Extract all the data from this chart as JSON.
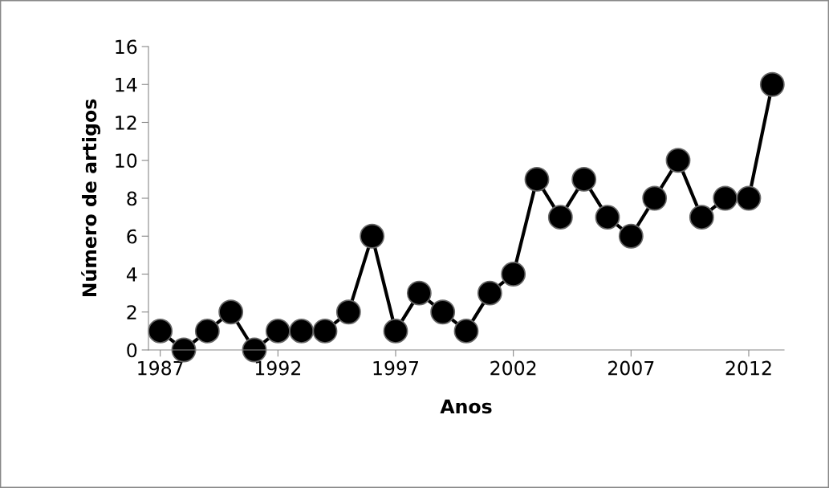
{
  "chart_data": {
    "type": "line",
    "xlabel": "Anos",
    "ylabel": "Número de artigos",
    "x": [
      1987,
      1988,
      1989,
      1990,
      1991,
      1992,
      1993,
      1994,
      1995,
      1996,
      1997,
      1998,
      1999,
      2000,
      2001,
      2002,
      2003,
      2004,
      2005,
      2006,
      2007,
      2008,
      2009,
      2010,
      2011,
      2012,
      2013
    ],
    "series": [
      {
        "color": "#000000",
        "values": [
          1,
          0,
          1,
          2,
          0,
          1,
          1,
          1,
          2,
          6,
          1,
          3,
          2,
          1,
          3,
          4,
          9,
          7,
          9,
          7,
          6,
          8,
          10,
          7,
          8,
          8,
          14
        ]
      }
    ],
    "xlim": [
      1986.5,
      2013.5
    ],
    "xticks": [
      1987,
      1992,
      1997,
      2002,
      2007,
      2012
    ],
    "ylim": [
      0,
      16
    ],
    "yticks": [
      0,
      2,
      4,
      6,
      8,
      10,
      12,
      14,
      16
    ],
    "grid": false,
    "marker": "circle",
    "line_style": "solid"
  }
}
